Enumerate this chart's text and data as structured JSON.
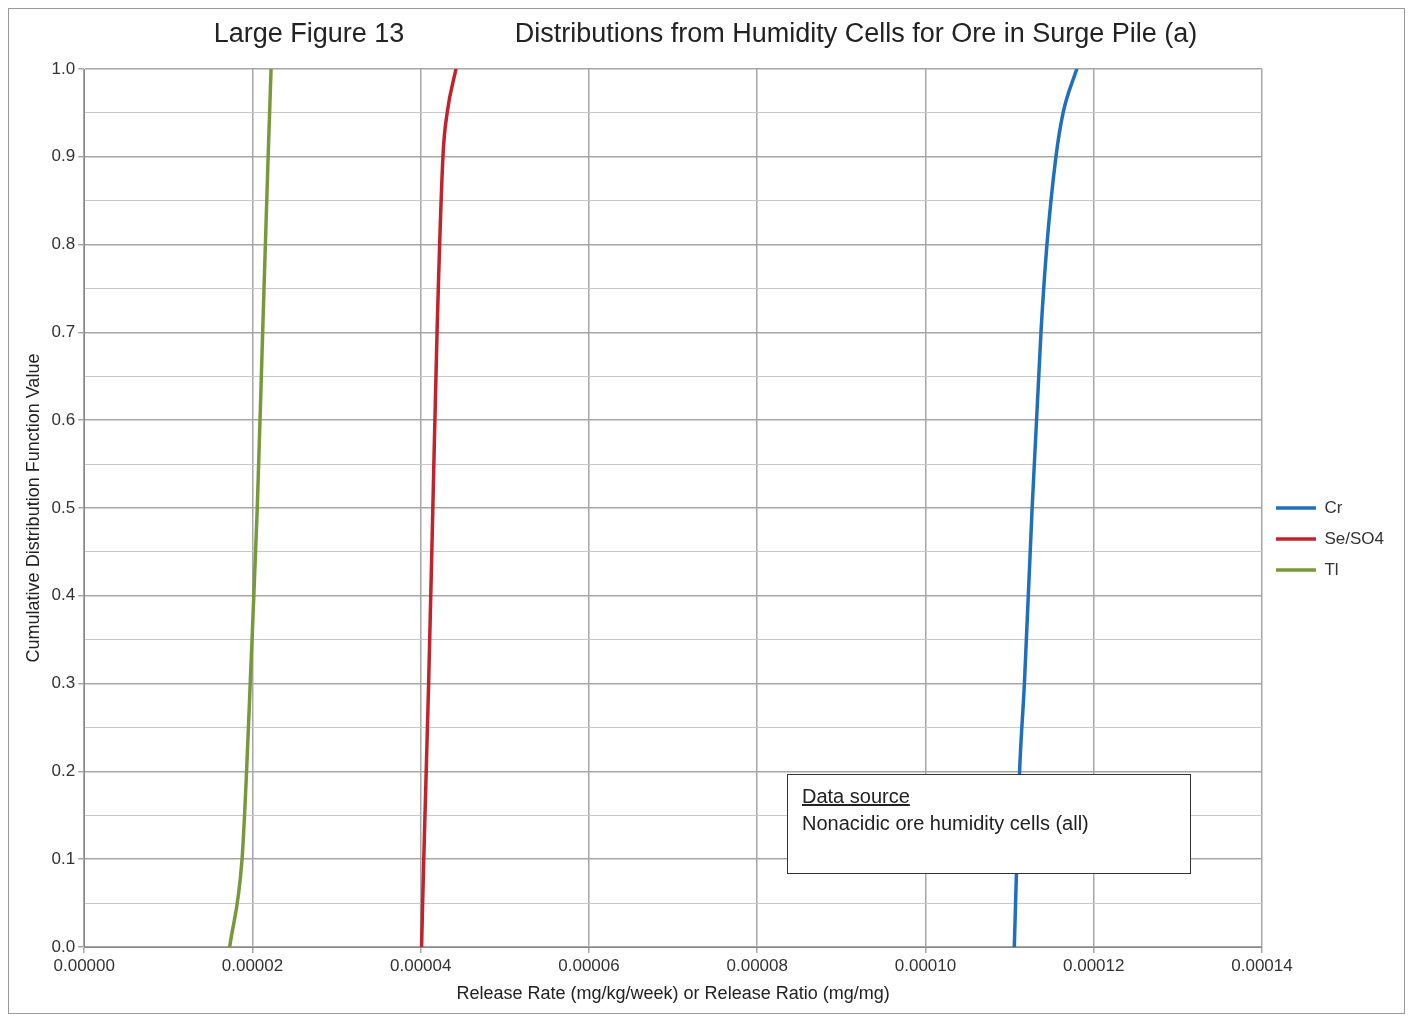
{
  "chart_data": {
    "type": "line",
    "title": "Large Figure 13",
    "subtitle": "Distributions from Humidity Cells for Ore in Surge Pile (a)",
    "xlabel": "Release Rate (mg/kg/week) or Release Ratio (mg/mg)",
    "ylabel": "Cumulative Distribution Function Value",
    "annotations": [
      "Data source",
      "Nonacidic ore humidity cells (all)"
    ],
    "series": [
      {
        "name": "Cr",
        "color": "#1f6fbf",
        "x": [
          0.00011056,
          0.00011119,
          0.00011176,
          0.00011268,
          0.00011373,
          0.00011444,
          0.00011551,
          0.00011636,
          0.00011798
        ],
        "values": [
          0,
          0.2,
          0.3,
          0.5,
          0.7,
          0.8,
          0.9,
          0.95,
          1.0
        ]
      },
      {
        "name": "Se/SO4",
        "color": "#c0232b",
        "x": [
          4.01e-05,
          4.036e-05,
          4.094e-05,
          4.144e-05,
          4.194e-05,
          4.264e-05,
          4.314e-05,
          4.419e-05
        ],
        "values": [
          0,
          0.1,
          0.3,
          0.5,
          0.7,
          0.9,
          0.95,
          1.0
        ]
      },
      {
        "name": "Tl",
        "color": "#77993a",
        "x": [
          1.729e-05,
          1.876e-05,
          1.93e-05,
          1.973e-05,
          2.057e-05,
          2.121e-05,
          2.186e-05,
          2.221e-05
        ],
        "values": [
          0,
          0.1,
          0.2,
          0.3,
          0.5,
          0.7,
          0.9,
          1.0
        ]
      }
    ],
    "xlim": [
      0,
      0.00014
    ],
    "xticks": [
      {
        "value": 0,
        "label": "0.00000"
      },
      {
        "value": 2e-05,
        "label": "0.00002"
      },
      {
        "value": 4e-05,
        "label": "0.00004"
      },
      {
        "value": 6e-05,
        "label": "0.00006"
      },
      {
        "value": 8e-05,
        "label": "0.00008"
      },
      {
        "value": 0.0001,
        "label": "0.00010"
      },
      {
        "value": 0.00012,
        "label": "0.00012"
      },
      {
        "value": 0.00014,
        "label": "0.00014"
      }
    ],
    "ylim": [
      0,
      1
    ],
    "yticks": [
      {
        "value": 0,
        "label": "0.0"
      },
      {
        "value": 0.05,
        "label": null
      },
      {
        "value": 0.1,
        "label": "0.1"
      },
      {
        "value": 0.15,
        "label": null
      },
      {
        "value": 0.2,
        "label": "0.2"
      },
      {
        "value": 0.25,
        "label": null
      },
      {
        "value": 0.3,
        "label": "0.3"
      },
      {
        "value": 0.35,
        "label": null
      },
      {
        "value": 0.4,
        "label": "0.4"
      },
      {
        "value": 0.45,
        "label": null
      },
      {
        "value": 0.5,
        "label": "0.5"
      },
      {
        "value": 0.55,
        "label": null
      },
      {
        "value": 0.6,
        "label": "0.6"
      },
      {
        "value": 0.65,
        "label": null
      },
      {
        "value": 0.7,
        "label": "0.7"
      },
      {
        "value": 0.75,
        "label": null
      },
      {
        "value": 0.8,
        "label": "0.8"
      },
      {
        "value": 0.85,
        "label": null
      },
      {
        "value": 0.9,
        "label": "0.9"
      },
      {
        "value": 0.95,
        "label": null
      },
      {
        "value": 1,
        "label": "1.0"
      }
    ],
    "grid": true,
    "legend": "right",
    "marker": "none",
    "line_style": "solid"
  }
}
